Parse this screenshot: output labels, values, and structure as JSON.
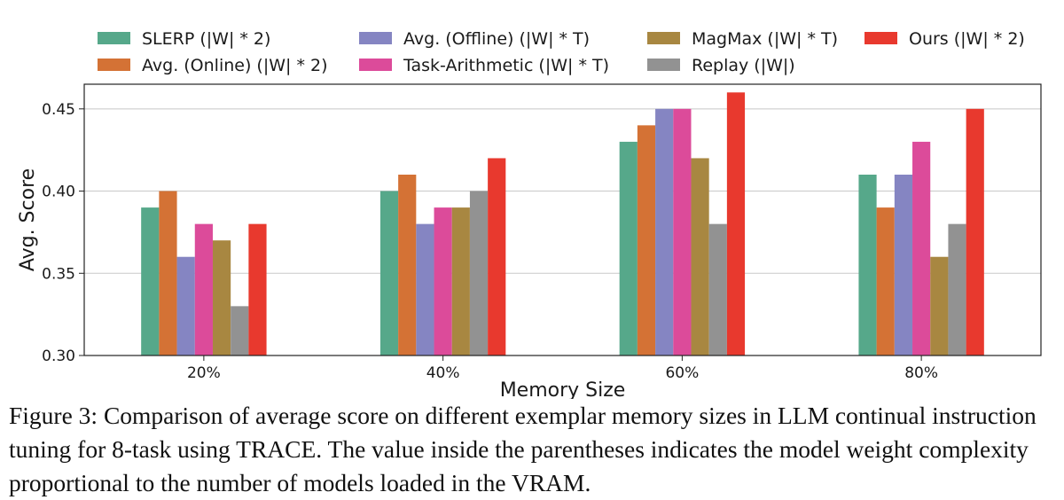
{
  "chart_data": {
    "type": "bar",
    "title": "",
    "xlabel": "Memory Size",
    "ylabel": "Avg. Score",
    "ylim": [
      0.3,
      0.465
    ],
    "yticks": [
      "0.30",
      "0.35",
      "0.40",
      "0.45"
    ],
    "ytick_values": [
      0.3,
      0.35,
      0.4,
      0.45
    ],
    "grid": "horizontal",
    "legend_position": "top",
    "categories": [
      "20%",
      "40%",
      "60%",
      "80%"
    ],
    "series": [
      {
        "name": "SLERP (|W| * 2)",
        "color": "#56a88a",
        "values": [
          0.39,
          0.4,
          0.43,
          0.41
        ]
      },
      {
        "name": "Avg. (Online) (|W| * 2)",
        "color": "#d47235",
        "values": [
          0.4,
          0.41,
          0.44,
          0.39
        ]
      },
      {
        "name": "Avg. (Offline) (|W| * T)",
        "color": "#8585c2",
        "values": [
          0.36,
          0.38,
          0.45,
          0.41
        ]
      },
      {
        "name": "Task-Arithmetic (|W| * T)",
        "color": "#dc4b9a",
        "values": [
          0.38,
          0.39,
          0.45,
          0.43
        ]
      },
      {
        "name": "MagMax (|W| * T)",
        "color": "#a88741",
        "values": [
          0.37,
          0.39,
          0.42,
          0.36
        ]
      },
      {
        "name": "Replay (|W|)",
        "color": "#929292",
        "values": [
          0.33,
          0.4,
          0.38,
          0.38
        ]
      },
      {
        "name": "Ours (|W| * 2)",
        "color": "#e8392e",
        "values": [
          0.38,
          0.42,
          0.46,
          0.45
        ]
      }
    ]
  },
  "caption": "Figure 3: Comparison of average score on different exemplar memory sizes in LLM continual instruction tuning for 8-task using TRACE. The value inside the parentheses indicates the model weight complexity proportional to the number of models loaded in the VRAM."
}
